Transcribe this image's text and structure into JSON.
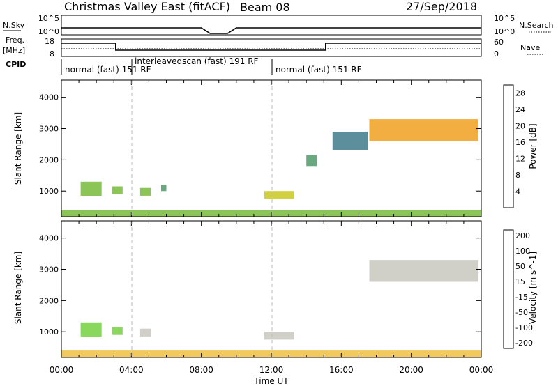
{
  "header": {
    "title": "Christmas Valley East (fitACF)",
    "beam": "Beam 08",
    "date": "27/Sep/2018"
  },
  "top_panels": {
    "nsky_label": "N.Sky",
    "nsearch_label": "N.Search",
    "freq_label_1": "Freq.",
    "freq_label_2": "[MHz]",
    "nave_label": "Nave",
    "cpid_label": "CPID",
    "left_ticks_nsky": [
      "10^5",
      "10^0"
    ],
    "right_ticks_nsky": [
      "10^5",
      "10^0"
    ],
    "left_ticks_freq": [
      "18",
      "8"
    ],
    "right_ticks_nave": [
      "60",
      "0"
    ]
  },
  "cpid_modes": [
    {
      "label": "normal (fast)  151 RF",
      "start_hour": 0
    },
    {
      "label": "interleavedscan (fast)  191 RF",
      "start_hour": 4
    },
    {
      "label": "normal (fast)  151 RF",
      "start_hour": 12
    }
  ],
  "time_axis": {
    "label": "Time UT",
    "ticks": [
      "00:00",
      "04:00",
      "08:00",
      "12:00",
      "16:00",
      "20:00",
      "00:00"
    ]
  },
  "range_axis": {
    "label": "Slant Range [km]",
    "ticks": [
      "1000",
      "2000",
      "3000",
      "4000"
    ]
  },
  "power_scale": {
    "label": "Power [dB]",
    "ticks": [
      "4",
      "8",
      "12",
      "16",
      "20",
      "24",
      "28"
    ],
    "colors": [
      "#1530e0",
      "#2a55b0",
      "#3f7a8a",
      "#4f9a6a",
      "#78bb3a",
      "#c8c820",
      "#f0a020",
      "#f07010",
      "#e83010",
      "#e01010"
    ]
  },
  "velocity_scale": {
    "label": "Velocity [m s^-1]",
    "ticks": [
      "200",
      "100",
      "50",
      "15",
      "-15",
      "-50",
      "-100",
      "-200"
    ],
    "colors": [
      "#2030c0",
      "#2a70a8",
      "#3aa070",
      "#74d040",
      "#c8c8c0",
      "#f0c040",
      "#f09020",
      "#f06010",
      "#e02010"
    ]
  },
  "chart_data": [
    {
      "type": "heatmap",
      "name": "Power",
      "xlabel": "Time UT",
      "ylabel": "Slant Range [km]",
      "xlim": [
        0,
        24
      ],
      "ylim": [
        180,
        4550
      ],
      "colorbar_label": "Power [dB]",
      "colorbar_range": [
        0,
        30
      ],
      "echo_regions": [
        {
          "t0": 1.1,
          "t1": 2.3,
          "r0": 850,
          "r1": 1300,
          "value": 14
        },
        {
          "t0": 2.9,
          "t1": 3.5,
          "r0": 900,
          "r1": 1150,
          "value": 12
        },
        {
          "t0": 4.5,
          "t1": 5.1,
          "r0": 850,
          "r1": 1100,
          "value": 12
        },
        {
          "t0": 5.7,
          "t1": 6.0,
          "r0": 1000,
          "r1": 1200,
          "value": 10
        },
        {
          "t0": 11.6,
          "t1": 13.3,
          "r0": 750,
          "r1": 1000,
          "value": 16
        },
        {
          "t0": 14.0,
          "t1": 14.6,
          "r0": 1800,
          "r1": 2150,
          "value": 10
        },
        {
          "t0": 17.6,
          "t1": 23.8,
          "r0": 2600,
          "r1": 3300,
          "value": 18
        },
        {
          "t0": 15.5,
          "t1": 17.5,
          "r0": 2300,
          "r1": 2900,
          "value": 8
        },
        {
          "t0": 0.0,
          "t1": 24.0,
          "r0": 180,
          "r1": 400,
          "value": 12
        }
      ]
    },
    {
      "type": "heatmap",
      "name": "Velocity",
      "xlabel": "Time UT",
      "ylabel": "Slant Range [km]",
      "xlim": [
        0,
        24
      ],
      "ylim": [
        180,
        4550
      ],
      "colorbar_label": "Velocity [m s^-1]",
      "colorbar_range": [
        -200,
        200
      ],
      "echo_regions": [
        {
          "t0": 1.1,
          "t1": 2.3,
          "r0": 850,
          "r1": 1300,
          "value": 40
        },
        {
          "t0": 2.9,
          "t1": 3.5,
          "r0": 900,
          "r1": 1150,
          "value": 40
        },
        {
          "t0": 4.5,
          "t1": 5.1,
          "r0": 850,
          "r1": 1100,
          "value": 0
        },
        {
          "t0": 11.6,
          "t1": 13.3,
          "r0": 750,
          "r1": 1000,
          "value": 0
        },
        {
          "t0": 17.6,
          "t1": 23.8,
          "r0": 2600,
          "r1": 3300,
          "value": 0
        },
        {
          "t0": 0.0,
          "t1": 24.0,
          "r0": 180,
          "r1": 400,
          "value": -40
        }
      ]
    }
  ]
}
